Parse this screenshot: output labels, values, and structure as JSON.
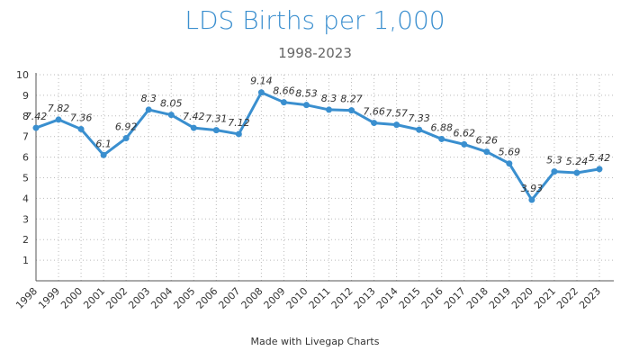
{
  "title": "LDS Births per 1,000",
  "subtitle": "1998-2023",
  "footer": "Made with Livegap Charts",
  "colors": {
    "title": "#3b8fcf",
    "line": "#3a8fcf",
    "grid": "#bbbbbb",
    "axis": "#555555"
  },
  "chart_data": {
    "type": "line",
    "title": "LDS Births per 1,000",
    "subtitle": "1998-2023",
    "xlabel": "",
    "ylabel": "",
    "ylim": [
      0,
      10
    ],
    "yticks": [
      1,
      2,
      3,
      4,
      5,
      6,
      7,
      8,
      9,
      10
    ],
    "grid": true,
    "categories": [
      "1998",
      "1999",
      "2000",
      "2001",
      "2002",
      "2003",
      "2004",
      "2005",
      "2006",
      "2007",
      "2008",
      "2009",
      "2010",
      "2011",
      "2012",
      "2013",
      "2014",
      "2015",
      "2016",
      "2017",
      "2018",
      "2019",
      "2020",
      "2021",
      "2022",
      "2023"
    ],
    "series": [
      {
        "values": [
          7.42,
          7.82,
          7.36,
          6.1,
          6.92,
          8.3,
          8.05,
          7.42,
          7.31,
          7.12,
          9.14,
          8.66,
          8.53,
          8.3,
          8.27,
          7.66,
          7.57,
          7.33,
          6.88,
          6.62,
          6.26,
          5.69,
          3.93,
          5.3,
          5.24,
          5.42
        ],
        "data_labels": [
          "7.42",
          "7.82",
          "7.36",
          "6.1",
          "6.92",
          "8.3",
          "8.05",
          "7.42",
          "7.31",
          "7.12",
          "9.14",
          "8.66",
          "8.53",
          "8.3",
          "8.27",
          "7.66",
          "7.57",
          "7.33",
          "6.88",
          "6.62",
          "6.26",
          "5.69",
          "3.93",
          "5.3",
          "5.24",
          "5.42"
        ]
      }
    ]
  }
}
